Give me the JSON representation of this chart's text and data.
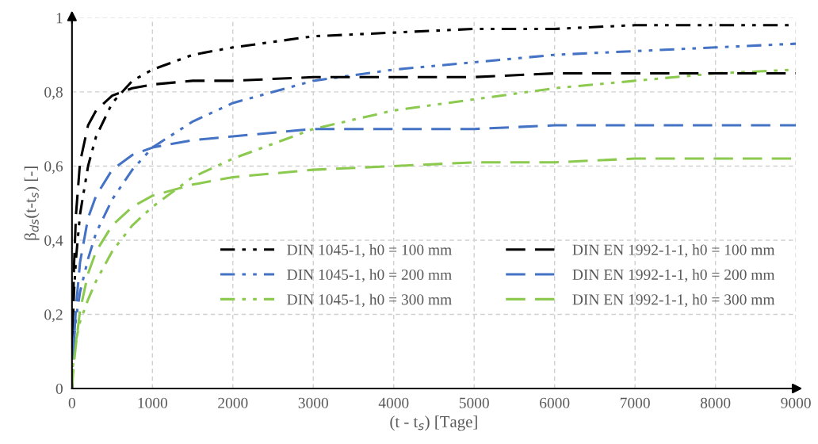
{
  "chart_data": {
    "type": "line",
    "xlabel": "(t - t$_{s}$) [Tage]",
    "ylabel": "β$_{ds}$(t-t$_{s}$) [-]",
    "x": [
      0,
      10,
      25,
      50,
      100,
      200,
      300,
      500,
      750,
      1000,
      1500,
      2000,
      3000,
      4000,
      5000,
      6000,
      7000,
      8000,
      9000
    ],
    "series": [
      {
        "name": "DIN 1045-1, h0 = 100 mm",
        "color": "#000000",
        "line_style": "dashdot",
        "values": [
          0,
          0.17,
          0.26,
          0.35,
          0.47,
          0.6,
          0.68,
          0.77,
          0.83,
          0.86,
          0.9,
          0.92,
          0.95,
          0.96,
          0.97,
          0.97,
          0.98,
          0.98,
          0.98
        ]
      },
      {
        "name": "DIN 1045-1, h0 = 200 mm",
        "color": "#4472c4",
        "line_style": "dashdot",
        "values": [
          0,
          0.08,
          0.13,
          0.19,
          0.26,
          0.35,
          0.42,
          0.51,
          0.59,
          0.65,
          0.72,
          0.77,
          0.83,
          0.86,
          0.88,
          0.9,
          0.91,
          0.92,
          0.93
        ]
      },
      {
        "name": "DIN 1045-1, h0 = 300 mm",
        "color": "#8cc94f",
        "line_style": "dashdot",
        "values": [
          0,
          0.06,
          0.09,
          0.13,
          0.18,
          0.24,
          0.29,
          0.37,
          0.44,
          0.49,
          0.57,
          0.62,
          0.7,
          0.75,
          0.78,
          0.81,
          0.83,
          0.85,
          0.86
        ]
      },
      {
        "name": "DIN EN 1992-1-1, h0 = 100 mm",
        "color": "#000000",
        "line_style": "dashed",
        "values": [
          0,
          0.17,
          0.33,
          0.47,
          0.61,
          0.71,
          0.75,
          0.79,
          0.81,
          0.82,
          0.83,
          0.83,
          0.84,
          0.84,
          0.84,
          0.85,
          0.85,
          0.85,
          0.85
        ]
      },
      {
        "name": "DIN EN 1992-1-1, h0 = 200 mm",
        "color": "#4472c4",
        "line_style": "dashed",
        "values": [
          0,
          0.06,
          0.13,
          0.22,
          0.34,
          0.46,
          0.52,
          0.59,
          0.63,
          0.65,
          0.67,
          0.68,
          0.7,
          0.7,
          0.7,
          0.71,
          0.71,
          0.71,
          0.71
        ]
      },
      {
        "name": "DIN EN 1992-1-1, h0 = 300 mm",
        "color": "#8cc94f",
        "line_style": "dashed",
        "values": [
          0,
          0.03,
          0.07,
          0.12,
          0.21,
          0.31,
          0.37,
          0.44,
          0.49,
          0.52,
          0.55,
          0.57,
          0.59,
          0.6,
          0.61,
          0.61,
          0.62,
          0.62,
          0.62
        ]
      }
    ],
    "xlim": [
      0,
      9000
    ],
    "xticks": [
      0,
      1000,
      2000,
      3000,
      4000,
      5000,
      6000,
      7000,
      8000,
      9000
    ],
    "ylim": [
      0,
      1
    ],
    "yticks": [
      0,
      {
        "value": 0.2,
        "label": "0,2"
      },
      {
        "value": 0.4,
        "label": "0,4"
      },
      {
        "value": 0.6,
        "label": "0,6"
      },
      {
        "value": 0.8,
        "label": "0,8"
      },
      1
    ],
    "grid": true,
    "legend": "bottom right",
    "marker": "none"
  }
}
